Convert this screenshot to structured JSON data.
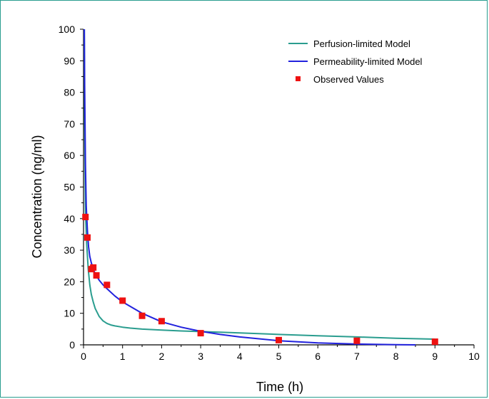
{
  "chart_data": {
    "type": "line",
    "xlabel": "Time (h)",
    "ylabel": "Concentration (ng/ml)",
    "xlim": [
      0,
      10
    ],
    "ylim": [
      0,
      100
    ],
    "xticks": [
      0,
      1,
      2,
      3,
      4,
      5,
      6,
      7,
      8,
      9,
      10
    ],
    "yticks": [
      0,
      10,
      20,
      30,
      40,
      50,
      60,
      70,
      80,
      90,
      100
    ],
    "grid": false,
    "legend_placement": "top-right",
    "series": [
      {
        "name": "Perfusion-limited Model",
        "kind": "line",
        "color": "#2a9d8f",
        "x": [
          0.02,
          0.03,
          0.05,
          0.08,
          0.12,
          0.16,
          0.2,
          0.25,
          0.3,
          0.4,
          0.5,
          0.6,
          0.7,
          0.8,
          1.0,
          1.2,
          1.5,
          2.0,
          2.5,
          3.0,
          3.5,
          4.0,
          5.0,
          6.0,
          7.0,
          8.0,
          9.0
        ],
        "y": [
          100,
          70,
          42,
          32,
          24,
          19,
          16,
          13.5,
          11.5,
          9.0,
          7.6,
          6.8,
          6.3,
          6.0,
          5.6,
          5.3,
          5.0,
          4.7,
          4.4,
          4.2,
          4.0,
          3.8,
          3.3,
          2.9,
          2.5,
          2.1,
          1.8
        ]
      },
      {
        "name": "Permeability-limited Model",
        "kind": "line",
        "color": "#2222dd",
        "x": [
          0.02,
          0.03,
          0.05,
          0.07,
          0.1,
          0.13,
          0.16,
          0.2,
          0.25,
          0.3,
          0.4,
          0.5,
          0.6,
          0.8,
          1.0,
          1.5,
          2.0,
          2.5,
          3.0,
          3.5,
          4.0,
          5.0,
          6.0,
          7.0,
          8.0,
          8.5
        ],
        "y": [
          100,
          82,
          57,
          44,
          36,
          31,
          28,
          26,
          24,
          22.5,
          20.5,
          19,
          17.8,
          15.5,
          13.6,
          10,
          7.3,
          5.6,
          4.3,
          3.3,
          2.5,
          1.3,
          0.6,
          0.25,
          0.05,
          0
        ]
      },
      {
        "name": "Observed Values",
        "kind": "scatter",
        "color": "#ee1111",
        "x": [
          0.05,
          0.1,
          0.2,
          0.25,
          0.33,
          0.6,
          1.0,
          1.5,
          2.0,
          3.0,
          5.0,
          7.0,
          9.0
        ],
        "y": [
          40.5,
          34,
          24,
          24.5,
          22,
          19,
          14,
          9.2,
          7.5,
          3.7,
          1.5,
          1.3,
          1.0
        ]
      }
    ]
  }
}
